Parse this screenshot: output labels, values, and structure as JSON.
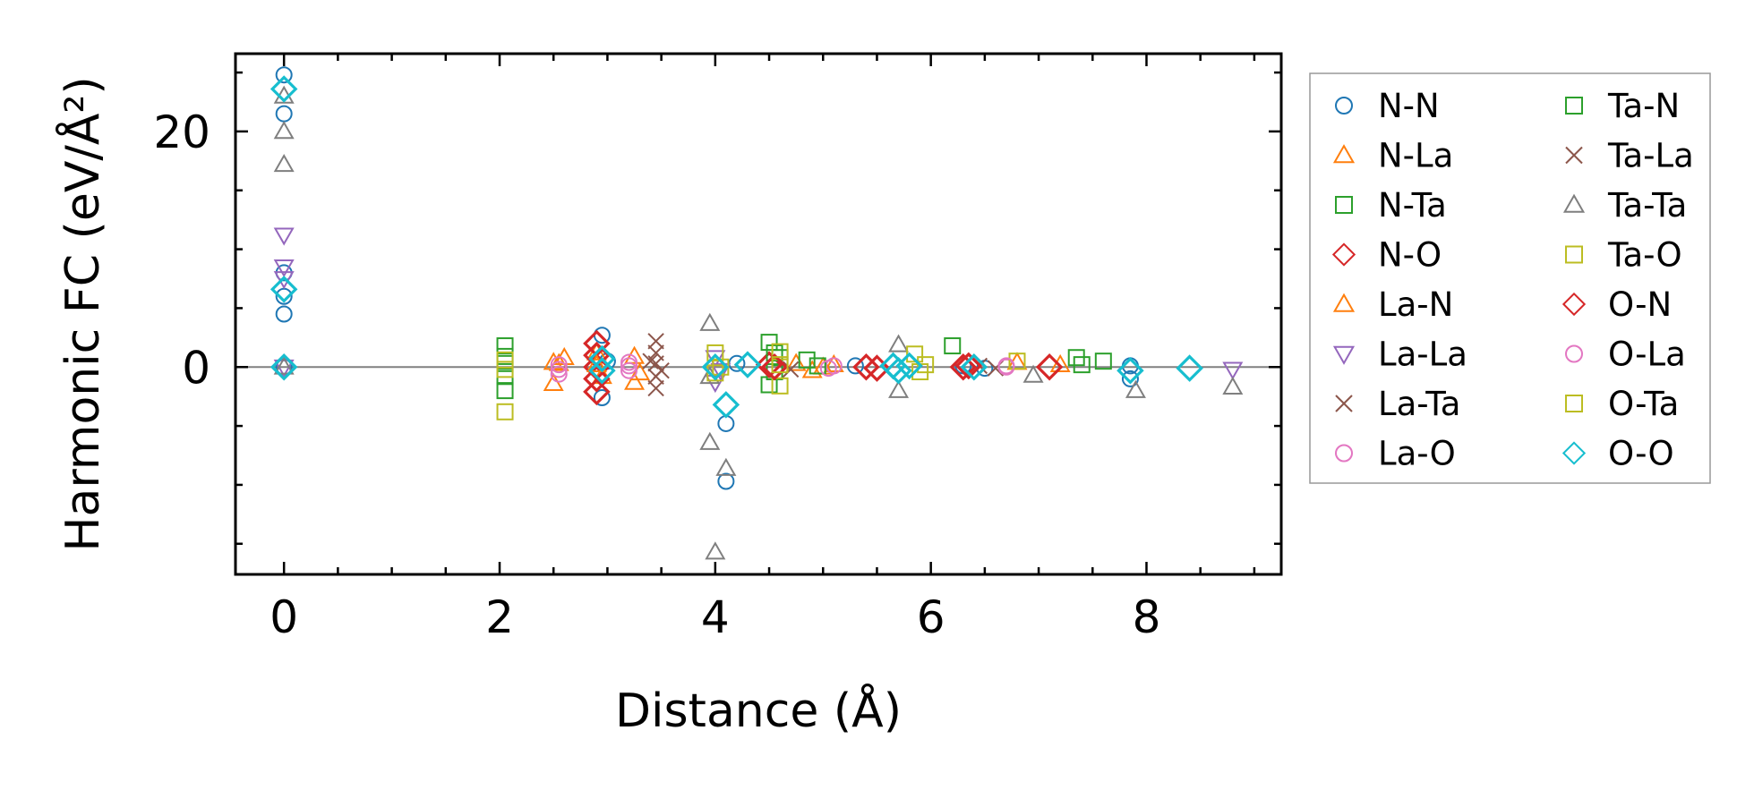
{
  "chart_data": {
    "type": "scatter",
    "xlabel": "Distance (Å)",
    "ylabel": "Harmonic FC (eV/Å²)",
    "xlim": [
      -0.45,
      9.25
    ],
    "ylim": [
      -17.6,
      26.6
    ],
    "xticks": [
      0,
      2,
      4,
      6,
      8
    ],
    "xtick_labels": [
      "0",
      "2",
      "4",
      "6",
      "8"
    ],
    "yticks": [
      0,
      20
    ],
    "ytick_labels": [
      "0",
      "20"
    ],
    "x_minor_step": 0.5,
    "y_minor_step": 5,
    "reference_line_y": 0,
    "legend_position": "outside-right",
    "legend_columns": 2,
    "series": [
      {
        "name": "N-N",
        "marker": "circle",
        "color": "#1f77b4",
        "points": [
          [
            0,
            24.8
          ],
          [
            0,
            21.5
          ],
          [
            0,
            8.0
          ],
          [
            0,
            6.0
          ],
          [
            0,
            4.5
          ],
          [
            0,
            0
          ],
          [
            2.95,
            2.7
          ],
          [
            2.95,
            -2.6
          ],
          [
            3.0,
            0.5
          ],
          [
            4.1,
            -4.8
          ],
          [
            4.1,
            -9.7
          ],
          [
            4.2,
            0.3
          ],
          [
            5.3,
            0.1
          ],
          [
            6.3,
            0.1
          ],
          [
            6.5,
            -0.1
          ],
          [
            7.85,
            0.1
          ],
          [
            7.85,
            -1.0
          ]
        ]
      },
      {
        "name": "N-La",
        "marker": "triangle-up",
        "color": "#ff7f0e",
        "points": [
          [
            2.5,
            -1.4
          ],
          [
            2.5,
            0.4
          ],
          [
            2.6,
            0.8
          ],
          [
            2.9,
            1.2
          ],
          [
            2.95,
            -0.8
          ],
          [
            3.25,
            0.9
          ],
          [
            3.25,
            -1.3
          ],
          [
            4.75,
            0.3
          ],
          [
            4.9,
            -0.3
          ],
          [
            5.1,
            0.2
          ],
          [
            6.8,
            0.4
          ],
          [
            7.2,
            0.2
          ]
        ]
      },
      {
        "name": "N-Ta",
        "marker": "square",
        "color": "#2ca02c",
        "points": [
          [
            2.05,
            1.8
          ],
          [
            2.05,
            0.9
          ],
          [
            2.05,
            -0.8
          ],
          [
            2.05,
            -2.0
          ],
          [
            4.5,
            2.1
          ],
          [
            4.5,
            -1.5
          ],
          [
            4.6,
            0.8
          ],
          [
            4.85,
            0.6
          ],
          [
            6.2,
            1.8
          ],
          [
            7.35,
            0.8
          ],
          [
            7.6,
            0.5
          ],
          [
            4.55,
            -0.4
          ]
        ]
      },
      {
        "name": "N-O",
        "marker": "diamond",
        "color": "#d62728",
        "points": [
          [
            2.9,
            2.0
          ],
          [
            2.9,
            1.0
          ],
          [
            2.9,
            0
          ],
          [
            2.9,
            -1.0
          ],
          [
            2.9,
            -2.1
          ],
          [
            4.5,
            0.2
          ],
          [
            5.4,
            0
          ],
          [
            6.3,
            0
          ],
          [
            7.1,
            0
          ]
        ]
      },
      {
        "name": "La-N",
        "marker": "triangle-up",
        "color": "#ff7f0e",
        "points": [
          [
            2.55,
            0.3
          ],
          [
            2.9,
            0.2
          ],
          [
            5.0,
            0.0
          ],
          [
            3.3,
            -0.5
          ]
        ]
      },
      {
        "name": "La-La",
        "marker": "triangle-down",
        "color": "#9467bd",
        "points": [
          [
            0,
            11.2
          ],
          [
            0,
            8.5
          ],
          [
            0,
            7.5
          ],
          [
            0,
            0
          ],
          [
            4.0,
            0.8
          ],
          [
            4.0,
            -1.3
          ],
          [
            4.05,
            -0.3
          ],
          [
            8.8,
            -0.2
          ]
        ]
      },
      {
        "name": "La-Ta",
        "marker": "x",
        "color": "#8c564b",
        "points": [
          [
            3.45,
            2.2
          ],
          [
            3.45,
            1.2
          ],
          [
            3.45,
            0.3
          ],
          [
            3.45,
            -0.8
          ],
          [
            3.45,
            -1.8
          ],
          [
            4.7,
            -0.2
          ],
          [
            6.45,
            0.1
          ],
          [
            6.6,
            -0.1
          ]
        ]
      },
      {
        "name": "La-O",
        "marker": "circle",
        "color": "#e377c2",
        "points": [
          [
            2.55,
            0.2
          ],
          [
            2.55,
            -0.6
          ],
          [
            3.2,
            0.4
          ],
          [
            3.2,
            -0.3
          ],
          [
            5.1,
            0.1
          ],
          [
            6.7,
            0.0
          ]
        ]
      },
      {
        "name": "Ta-N",
        "marker": "square",
        "color": "#2ca02c",
        "points": [
          [
            2.05,
            0.3
          ],
          [
            4.55,
            1.2
          ],
          [
            7.4,
            0.2
          ],
          [
            4.95,
            0.1
          ]
        ]
      },
      {
        "name": "Ta-La",
        "marker": "x",
        "color": "#8c564b",
        "points": [
          [
            3.4,
            0.5
          ],
          [
            3.5,
            -0.3
          ]
        ]
      },
      {
        "name": "Ta-Ta",
        "marker": "triangle-up",
        "color": "#7f7f7f",
        "points": [
          [
            0,
            23.0
          ],
          [
            0,
            20.0
          ],
          [
            0,
            17.2
          ],
          [
            0,
            0
          ],
          [
            3.95,
            3.7
          ],
          [
            3.95,
            -6.4
          ],
          [
            4.0,
            -15.7
          ],
          [
            4.1,
            -8.6
          ],
          [
            3.95,
            -0.8
          ],
          [
            5.7,
            1.9
          ],
          [
            5.7,
            -2.0
          ],
          [
            6.95,
            -0.7
          ],
          [
            7.9,
            -2.0
          ],
          [
            8.8,
            -1.7
          ]
        ]
      },
      {
        "name": "Ta-O",
        "marker": "square",
        "color": "#bcbd22",
        "points": [
          [
            2.05,
            -3.8
          ],
          [
            2.05,
            0.6
          ],
          [
            4.0,
            1.2
          ],
          [
            4.0,
            -0.5
          ],
          [
            4.6,
            -1.6
          ],
          [
            4.6,
            1.3
          ],
          [
            5.85,
            1.1
          ],
          [
            5.9,
            -0.4
          ],
          [
            6.8,
            0.5
          ]
        ]
      },
      {
        "name": "O-N",
        "marker": "diamond",
        "color": "#d62728",
        "points": [
          [
            4.55,
            0
          ],
          [
            5.5,
            -0.1
          ],
          [
            6.35,
            0.1
          ]
        ]
      },
      {
        "name": "O-La",
        "marker": "circle",
        "color": "#e377c2",
        "points": [
          [
            2.55,
            -0.2
          ],
          [
            3.2,
            0.1
          ],
          [
            5.05,
            -0.1
          ],
          [
            6.7,
            0.1
          ]
        ]
      },
      {
        "name": "O-Ta",
        "marker": "square",
        "color": "#bcbd22",
        "points": [
          [
            2.05,
            -0.2
          ],
          [
            4.05,
            0.0
          ],
          [
            4.6,
            0.2
          ],
          [
            5.95,
            0.2
          ]
        ]
      },
      {
        "name": "O-O",
        "marker": "diamond",
        "color": "#17becf",
        "points": [
          [
            0,
            23.6
          ],
          [
            0,
            6.6
          ],
          [
            0,
            0
          ],
          [
            2.95,
            0.7
          ],
          [
            2.95,
            -0.3
          ],
          [
            4.0,
            0
          ],
          [
            4.1,
            -3.2
          ],
          [
            4.3,
            0.2
          ],
          [
            5.65,
            0.1
          ],
          [
            5.7,
            -0.3
          ],
          [
            5.8,
            0.1
          ],
          [
            6.4,
            0
          ],
          [
            7.85,
            -0.3
          ],
          [
            8.4,
            -0.1
          ]
        ]
      }
    ]
  }
}
